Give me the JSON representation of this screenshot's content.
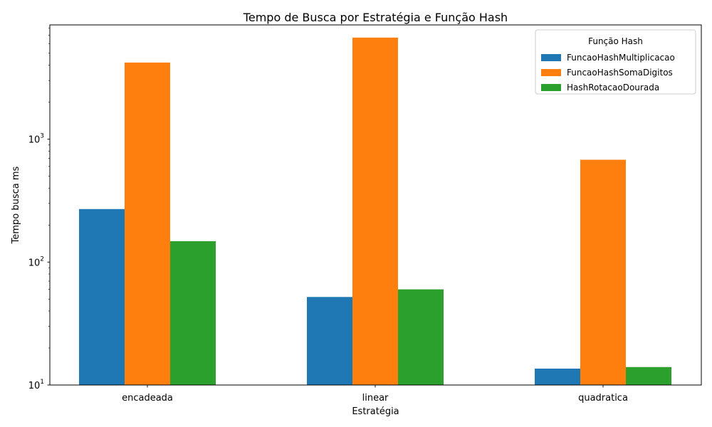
{
  "chart_data": {
    "type": "bar",
    "title": "Tempo de Busca por Estratégia e Função Hash",
    "xlabel": "Estratégia",
    "ylabel": "Tempo busca ms",
    "yscale": "log",
    "ylim": [
      10,
      8500
    ],
    "y_ticks": [
      {
        "value": 10,
        "base": "10",
        "exp": "1"
      },
      {
        "value": 100,
        "base": "10",
        "exp": "2"
      },
      {
        "value": 1000,
        "base": "10",
        "exp": "3"
      }
    ],
    "categories": [
      "encadeada",
      "linear",
      "quadratica"
    ],
    "legend_title": "Função Hash",
    "legend_position": "top-right",
    "grid": false,
    "series": [
      {
        "name": "FuncaoHashMultiplicacao",
        "color": "#1f77b4",
        "values": [
          270,
          52,
          13.6
        ]
      },
      {
        "name": "FuncaoHashSomaDigitos",
        "color": "#ff7f0e",
        "values": [
          4200,
          6700,
          680
        ]
      },
      {
        "name": "HashRotacaoDourada",
        "color": "#2ca02c",
        "values": [
          148,
          60,
          14
        ]
      }
    ]
  }
}
